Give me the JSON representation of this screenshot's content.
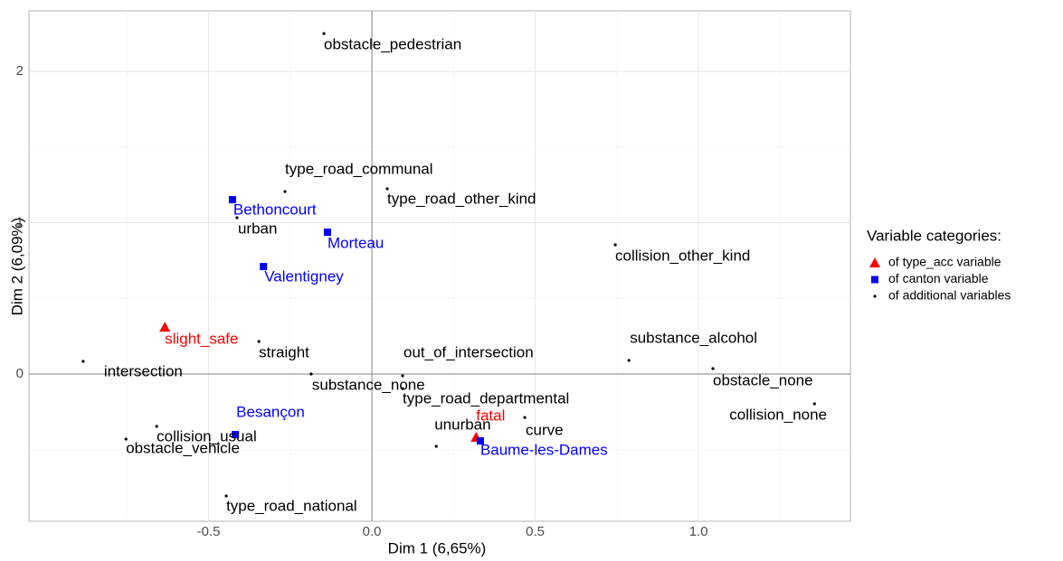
{
  "chart_data": {
    "type": "scatter",
    "xlabel": "Dim 1 (6,65%)",
    "ylabel": "Dim 2 (6,09%)",
    "xlim": [
      -1.05,
      1.465
    ],
    "ylim": [
      -0.973,
      2.4
    ],
    "xticks": [
      -0.5,
      {
        "value": 0,
        "label": "0.0"
      },
      0.5,
      {
        "value": 1,
        "label": "1.0"
      }
    ],
    "yticks": [
      0,
      1,
      2
    ],
    "grid": true,
    "legend_title": "Variable categories:",
    "legend_position": "right",
    "series": [
      {
        "name": "of type_acc variable",
        "color": "#ff0000",
        "marker": "triangle",
        "labels": [
          "slight_safe",
          "fatal"
        ],
        "x": [
          -0.634,
          0.319
        ],
        "y": [
          0.31,
          -0.418
        ]
      },
      {
        "name": "of canton variable",
        "color": "#0000ff",
        "marker": "square",
        "labels": [
          "Bethoncourt",
          "Morteau",
          "Valentigney",
          "Besançon",
          "Baume-les-Dames"
        ],
        "x": [
          -0.427,
          -0.136,
          -0.332,
          -0.418,
          0.332
        ],
        "y": [
          1.152,
          0.937,
          0.71,
          -0.4,
          -0.442
        ]
      },
      {
        "name": "of additional variables",
        "color": "#000000",
        "marker": "dot",
        "labels": [
          "obstacle_pedestrian",
          "type_road_communal",
          "type_road_other_kind",
          "urban",
          "collision_other_kind",
          "straight",
          "intersection",
          "substance_alcohol",
          "out_of_intersection",
          "substance_none",
          "obstacle_none",
          "collision_none",
          "type_road_departmental",
          "curve",
          "unurban",
          "collision_usual",
          "obstacle_vehicle",
          "type_road_national"
        ],
        "x": [
          -0.147,
          -0.266,
          0.047,
          -0.413,
          0.745,
          -0.346,
          -0.884,
          0.787,
          0.094,
          -0.186,
          1.044,
          1.355,
          0.094,
          0.468,
          0.197,
          -0.659,
          -0.753,
          -0.446
        ],
        "y": [
          2.25,
          1.206,
          1.224,
          1.033,
          0.854,
          0.215,
          0.084,
          0.09,
          -0.012,
          0,
          0.036,
          -0.197,
          -0.096,
          -0.287,
          -0.478,
          -0.346,
          -0.43,
          -0.806
        ]
      }
    ]
  }
}
